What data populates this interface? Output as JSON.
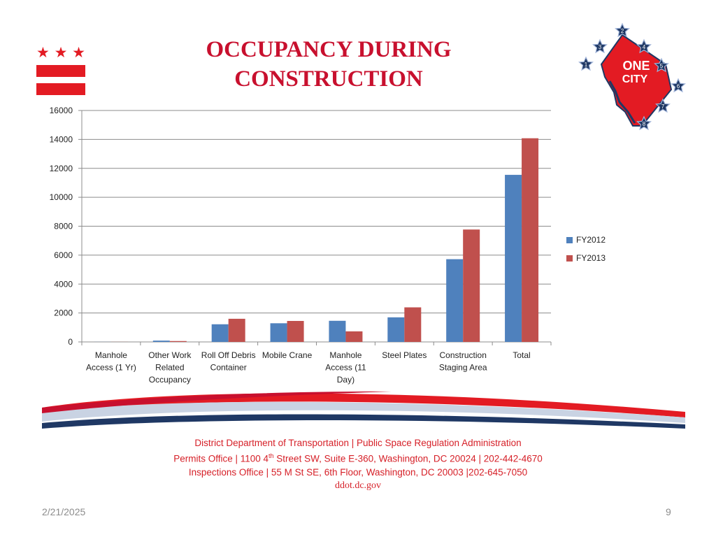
{
  "slide": {
    "title_line1": "OCCUPANCY  DURING",
    "title_line2": "CONSTRUCTION",
    "date": "2/21/2025",
    "page_number": "9",
    "logo_text_line1": "ONE",
    "logo_text_line2": "CITY",
    "logo_star_numbers": [
      "1",
      "2",
      "3",
      "4",
      "5",
      "6",
      "7",
      "8"
    ]
  },
  "footer": {
    "line1": "District Department of Transportation | Public Space Regulation Administration",
    "line2_pre": "Permits Office | 1100 4",
    "line2_sup": "th",
    "line2_post": " Street SW, Suite E-360, Washington, DC 20024 | 202-442-4670",
    "line3": "Inspections Office | 55 M St SE, 6th Floor, Washington, DC 20003  |202-645-7050",
    "website": "ddot.dc.gov"
  },
  "colors": {
    "red": "#e31b23",
    "title_red": "#c8102e",
    "navy": "#1f3864"
  },
  "chart_data": {
    "type": "bar",
    "title": "",
    "xlabel": "",
    "ylabel": "",
    "ylim": [
      0,
      16000
    ],
    "yticks": [
      0,
      2000,
      4000,
      6000,
      8000,
      10000,
      12000,
      14000,
      16000
    ],
    "grid": true,
    "legend_position": "right",
    "categories": [
      [
        "Manhole",
        "Access (1 Yr)"
      ],
      [
        "Other Work",
        "Related",
        "Occupancy"
      ],
      [
        "Roll Off Debris",
        "Container"
      ],
      [
        "Mobile Crane"
      ],
      [
        "Manhole",
        "Access (11",
        "Day)"
      ],
      [
        "Steel Plates"
      ],
      [
        "Construction",
        "Staging Area"
      ],
      [
        "Total"
      ]
    ],
    "series": [
      {
        "name": "FY2012",
        "color": "#4f81bd",
        "values": [
          5,
          90,
          1220,
          1290,
          1460,
          1700,
          5720,
          11550
        ]
      },
      {
        "name": "FY2013",
        "color": "#c0504d",
        "values": [
          5,
          60,
          1600,
          1450,
          730,
          2390,
          7770,
          14080
        ]
      }
    ]
  }
}
